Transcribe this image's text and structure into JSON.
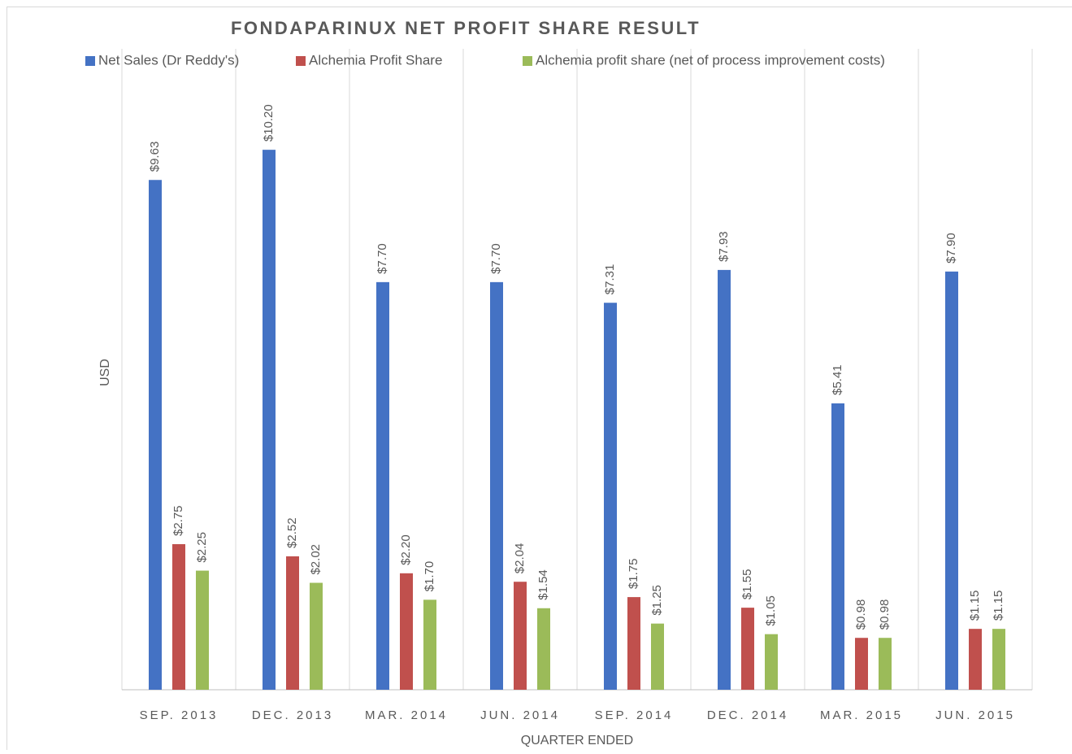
{
  "chart_data": {
    "type": "bar",
    "title": "FONDAPARINUX NET PROFIT SHARE RESULT",
    "x_label": "QUARTER ENDED",
    "y_label": "USD",
    "categories": [
      "SEP. 2013",
      "DEC. 2013",
      "MAR. 2014",
      "JUN. 2014",
      "SEP. 2014",
      "DEC. 2014",
      "MAR. 2015",
      "JUN. 2015"
    ],
    "series": [
      {
        "name": "Net Sales (Dr Reddy's)",
        "color": "#4472c4",
        "values": [
          9.63,
          10.2,
          7.7,
          7.7,
          7.31,
          7.93,
          5.41,
          7.9
        ],
        "value_labels": [
          "$9.63",
          "$10.20",
          "$7.70",
          "$7.70",
          "$7.31",
          "$7.93",
          "$5.41",
          "$7.90"
        ]
      },
      {
        "name": "Alchemia Profit Share",
        "color": "#c0504d",
        "values": [
          2.75,
          2.52,
          2.2,
          2.04,
          1.75,
          1.55,
          0.98,
          1.15
        ],
        "value_labels": [
          "$2.75",
          "$2.52",
          "$2.20",
          "$2.04",
          "$1.75",
          "$1.55",
          "$0.98",
          "$1.15"
        ]
      },
      {
        "name": "Alchemia profit share (net of process improvement costs)",
        "color": "#9bbb59",
        "values": [
          2.25,
          2.02,
          1.7,
          1.54,
          1.25,
          1.05,
          0.98,
          1.15
        ],
        "value_labels": [
          "$2.25",
          "$2.02",
          "$1.70",
          "$1.54",
          "$1.25",
          "$1.05",
          "$0.98",
          "$1.15"
        ]
      }
    ],
    "ylim": [
      0,
      12
    ],
    "legend": "top",
    "grid": true
  }
}
